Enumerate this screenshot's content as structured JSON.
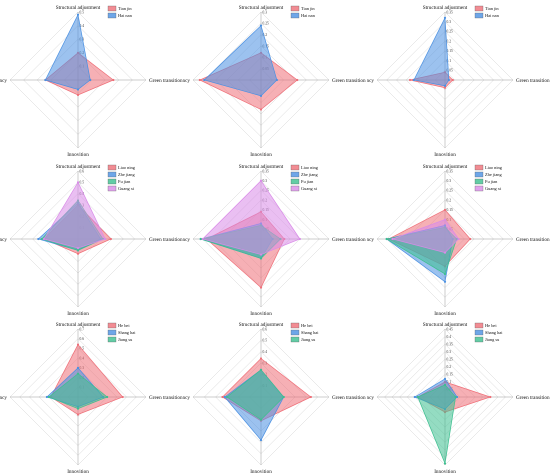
{
  "axes": [
    "Structural adjustment",
    "Green transition",
    "Innovition",
    "Efficiency"
  ],
  "chart_data": [
    {
      "type": "radar",
      "axes": [
        "Structural adjustment",
        "Green transition",
        "Innovition",
        "Efficiency"
      ],
      "ticks": [
        0,
        0.1,
        0.2,
        0.3,
        0.4,
        0.5
      ],
      "rmax": 0.5,
      "series": [
        {
          "name": "Tian jin",
          "values": [
            0.2,
            0.26,
            0.11,
            0.24
          ],
          "color": "#ef6f78"
        },
        {
          "name": "Hai nan",
          "values": [
            0.48,
            0.09,
            0.07,
            0.24
          ],
          "color": "#4a90e2"
        }
      ]
    },
    {
      "type": "radar",
      "axes": [
        "Structural adjustment",
        "Green transition",
        "Innovition",
        "Efficiency"
      ],
      "ticks": [
        0,
        0.05,
        0.1,
        0.15,
        0.2,
        0.25,
        0.3
      ],
      "rmax": 0.3,
      "series": [
        {
          "name": "Tian jin",
          "values": [
            0.12,
            0.16,
            0.13,
            0.27
          ],
          "color": "#ef6f78"
        },
        {
          "name": "Hai nan",
          "values": [
            0.24,
            0.07,
            0.07,
            0.25
          ],
          "color": "#4a90e2"
        }
      ]
    },
    {
      "type": "radar",
      "axes": [
        "Structural adjustment",
        "Green transition",
        "Innovition",
        "Efficiency"
      ],
      "ticks": [
        0,
        0.05,
        0.1,
        0.15,
        0.2,
        0.25,
        0.3,
        0.35
      ],
      "rmax": 0.35,
      "series": [
        {
          "name": "Tian jin",
          "values": [
            0.04,
            0.04,
            0.04,
            0.18
          ],
          "color": "#ef6f78"
        },
        {
          "name": "Hai nan",
          "values": [
            0.32,
            0.02,
            0.03,
            0.16
          ],
          "color": "#4a90e2"
        }
      ]
    },
    {
      "type": "radar",
      "axes": [
        "Structural adjustment",
        "Green transition",
        "Innovition",
        "Efficiency"
      ],
      "ticks": [
        0,
        0.1,
        0.2,
        0.3,
        0.4,
        0.5,
        0.6
      ],
      "rmax": 0.6,
      "series": [
        {
          "name": "Liao ning",
          "values": [
            0.3,
            0.29,
            0.13,
            0.3
          ],
          "color": "#ef6f78"
        },
        {
          "name": "Zhe jiang",
          "values": [
            0.32,
            0.2,
            0.1,
            0.35
          ],
          "color": "#4a90e2"
        },
        {
          "name": "Fu jian",
          "values": [
            0.34,
            0.22,
            0.1,
            0.32
          ],
          "color": "#3cbf8f"
        },
        {
          "name": "Guang xi",
          "values": [
            0.5,
            0.24,
            0.08,
            0.3
          ],
          "color": "#d98be8"
        }
      ]
    },
    {
      "type": "radar",
      "axes": [
        "Structural adjustment",
        "Green transition",
        "Innovition",
        "Efficiency"
      ],
      "ticks": [
        0,
        0.05,
        0.1,
        0.15,
        0.2,
        0.25,
        0.3,
        0.35
      ],
      "rmax": 0.35,
      "series": [
        {
          "name": "Liao ning",
          "values": [
            0.14,
            0.12,
            0.25,
            0.28
          ],
          "color": "#ef6f78"
        },
        {
          "name": "Zhe jiang",
          "values": [
            0.08,
            0.06,
            0.1,
            0.31
          ],
          "color": "#4a90e2"
        },
        {
          "name": "Fu jian",
          "values": [
            0.07,
            0.1,
            0.1,
            0.31
          ],
          "color": "#3cbf8f"
        },
        {
          "name": "Guang xi",
          "values": [
            0.3,
            0.2,
            0.08,
            0.3
          ],
          "color": "#d98be8"
        }
      ]
    },
    {
      "type": "radar",
      "axes": [
        "Structural adjustment",
        "Green transition",
        "Innovition",
        "Efficiency"
      ],
      "ticks": [
        0,
        0.05,
        0.1,
        0.15,
        0.2,
        0.25,
        0.3,
        0.35
      ],
      "rmax": 0.35,
      "series": [
        {
          "name": "Liao ning",
          "values": [
            0.15,
            0.13,
            0.14,
            0.29
          ],
          "color": "#ef6f78"
        },
        {
          "name": "Zhe jiang",
          "values": [
            0.07,
            0.04,
            0.22,
            0.3
          ],
          "color": "#4a90e2"
        },
        {
          "name": "Fu jian",
          "values": [
            0.06,
            0.06,
            0.18,
            0.3
          ],
          "color": "#3cbf8f"
        },
        {
          "name": "Guang xi",
          "values": [
            0.1,
            0.07,
            0.07,
            0.27
          ],
          "color": "#d98be8"
        }
      ]
    },
    {
      "type": "radar",
      "axes": [
        "Structural adjustment",
        "Green transition",
        "Innovition",
        "Efficiency"
      ],
      "ticks": [
        0,
        0.1,
        0.2,
        0.3,
        0.4,
        0.5,
        0.6,
        0.7
      ],
      "rmax": 0.7,
      "series": [
        {
          "name": "He bei",
          "values": [
            0.54,
            0.46,
            0.18,
            0.28
          ],
          "color": "#ef6f78"
        },
        {
          "name": "Shang hai",
          "values": [
            0.3,
            0.26,
            0.1,
            0.32
          ],
          "color": "#4a90e2"
        },
        {
          "name": "Jiang su",
          "values": [
            0.24,
            0.3,
            0.12,
            0.3
          ],
          "color": "#3cbf8f"
        }
      ]
    },
    {
      "type": "radar",
      "axes": [
        "Structural adjustment",
        "Green transition",
        "Innovition",
        "Efficiency"
      ],
      "ticks": [
        0,
        0.1,
        0.2,
        0.3,
        0.4,
        0.5,
        0.6
      ],
      "rmax": 0.6,
      "series": [
        {
          "name": "He bei",
          "values": [
            0.34,
            0.44,
            0.21,
            0.34
          ],
          "color": "#ef6f78"
        },
        {
          "name": "Shang hai",
          "values": [
            0.24,
            0.2,
            0.38,
            0.32
          ],
          "color": "#4a90e2"
        },
        {
          "name": "Jiang su",
          "values": [
            0.24,
            0.2,
            0.2,
            0.3
          ],
          "color": "#3cbf8f"
        }
      ]
    },
    {
      "type": "radar",
      "axes": [
        "Structural adjustment",
        "Green transition",
        "Innovition",
        "Efficiency"
      ],
      "ticks": [
        0,
        0.05,
        0.1,
        0.15,
        0.2,
        0.25,
        0.3,
        0.35,
        0.4,
        0.45
      ],
      "rmax": 0.45,
      "series": [
        {
          "name": "He bei",
          "values": [
            0.1,
            0.3,
            0.1,
            0.18
          ],
          "color": "#ef6f78"
        },
        {
          "name": "Shang hai",
          "values": [
            0.12,
            0.08,
            0.08,
            0.2
          ],
          "color": "#4a90e2"
        },
        {
          "name": "Jiang su",
          "values": [
            0.08,
            0.07,
            0.44,
            0.18
          ],
          "color": "#3cbf8f"
        }
      ]
    }
  ]
}
